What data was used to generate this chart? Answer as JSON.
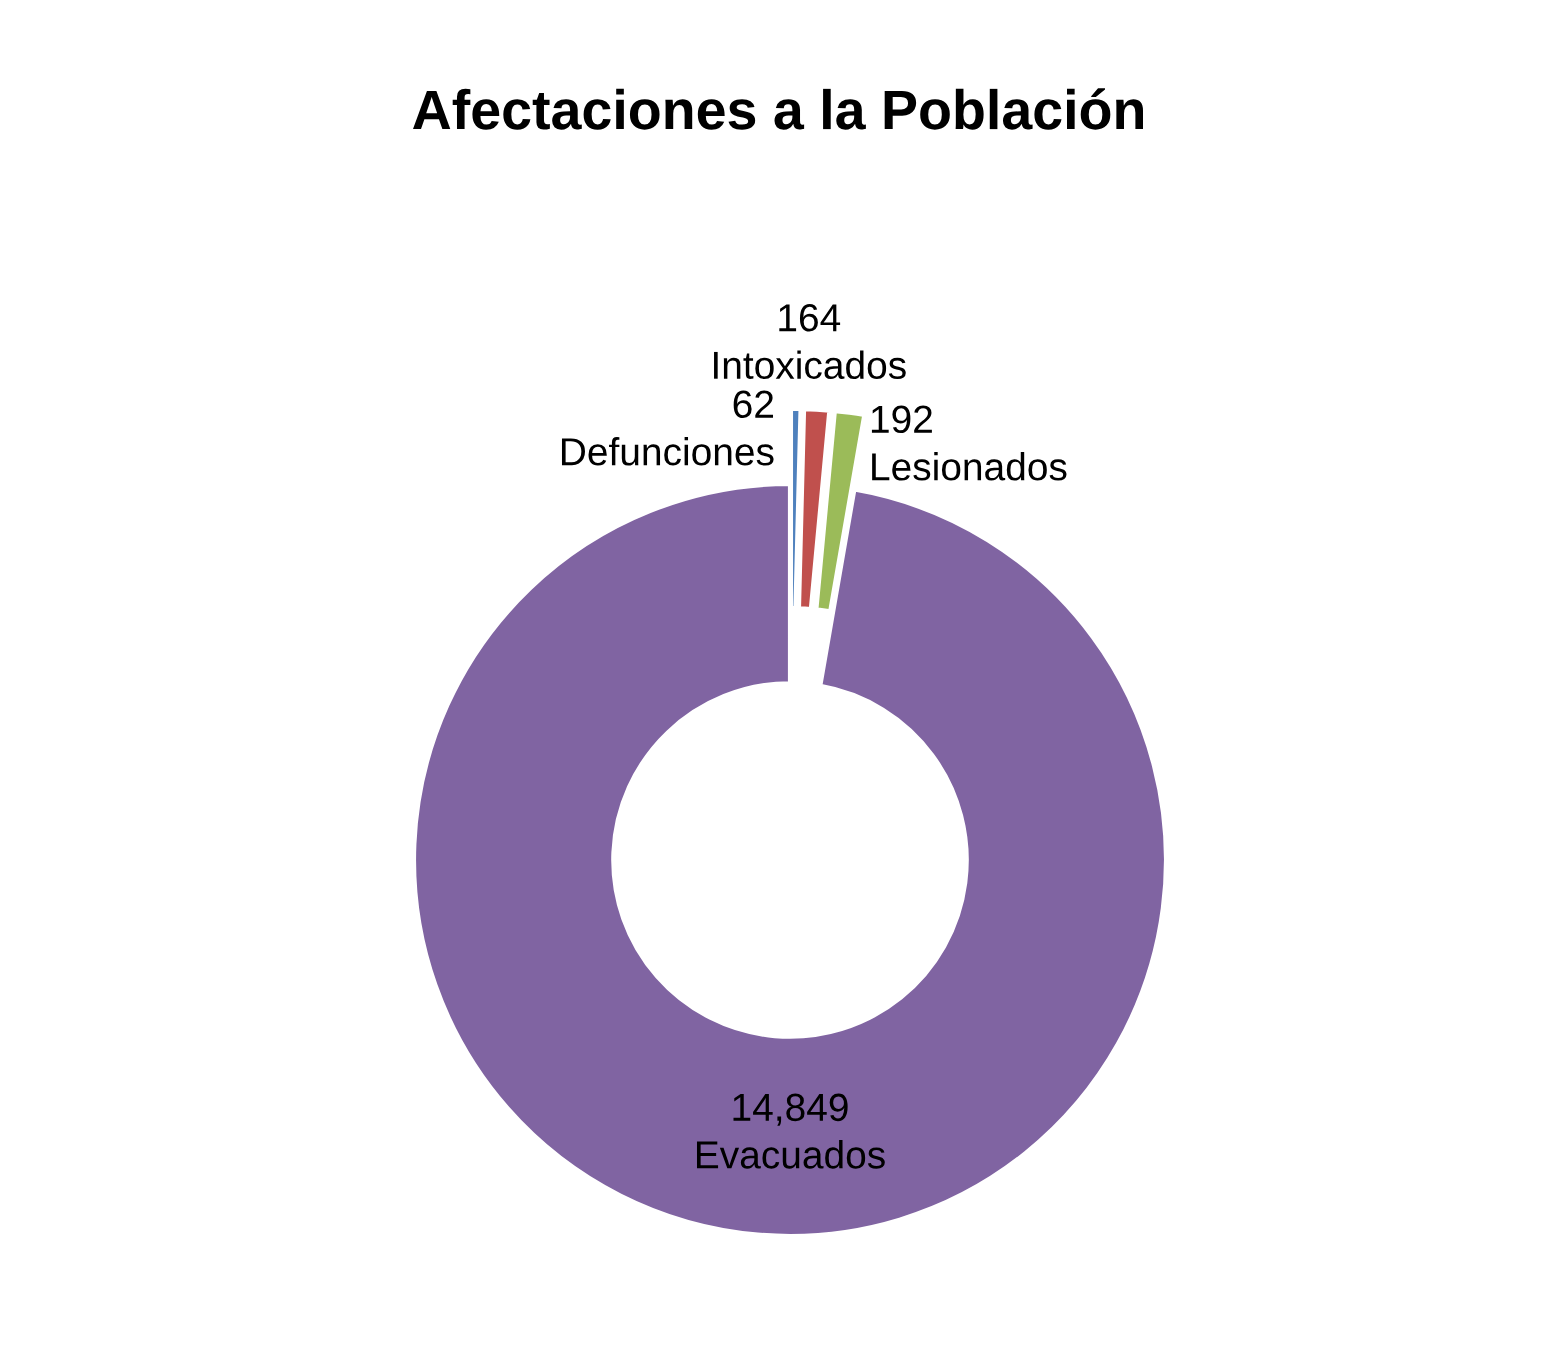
{
  "chart_data": {
    "type": "donut",
    "title": "Afectaciones a la Población",
    "categories": [
      "Defunciones",
      "Intoxicados",
      "Lesionados",
      "Evacuados"
    ],
    "values": [
      62,
      164,
      192,
      14849
    ],
    "value_labels": [
      "62",
      "164",
      "192",
      "14,849"
    ],
    "colors": [
      "#4f81bd",
      "#c0504d",
      "#9bbb59",
      "#8064a2"
    ],
    "legend": false
  }
}
